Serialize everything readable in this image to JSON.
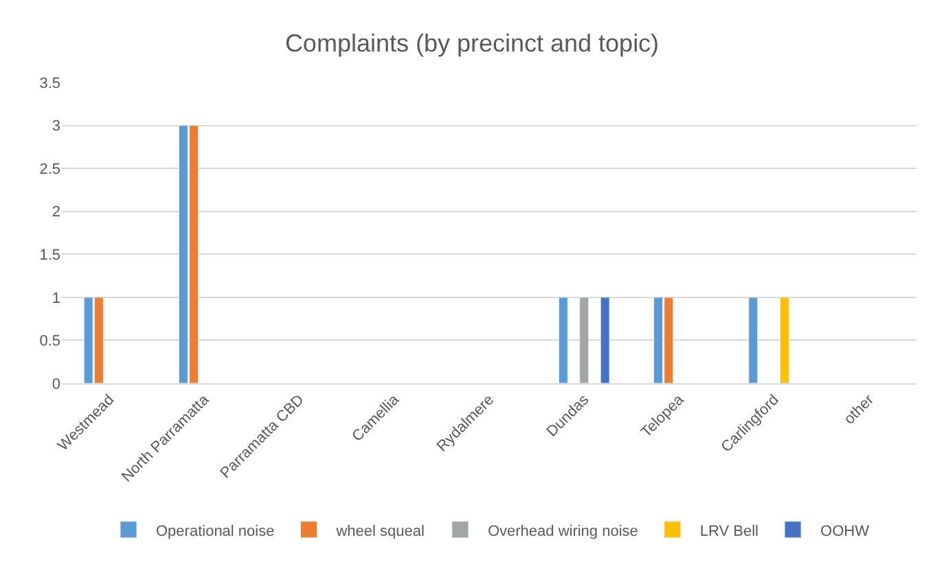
{
  "chart_data": {
    "type": "bar",
    "title": "Complaints (by precinct and topic)",
    "categories": [
      "Westmead",
      "North Parramatta",
      "Parramatta CBD",
      "Camellia",
      "Rydalmere",
      "Dundas",
      "Telopea",
      "Carlingford",
      "other"
    ],
    "series": [
      {
        "name": "Operational noise",
        "color": "#5b9bd5",
        "values": [
          1,
          3,
          null,
          null,
          null,
          1,
          1,
          1,
          null
        ]
      },
      {
        "name": "wheel squeal",
        "color": "#ed7d31",
        "values": [
          1,
          3,
          null,
          null,
          null,
          null,
          1,
          null,
          null
        ]
      },
      {
        "name": "Overhead wiring noise",
        "color": "#a5a5a5",
        "values": [
          null,
          null,
          null,
          null,
          null,
          1,
          null,
          null,
          null
        ]
      },
      {
        "name": "LRV Bell",
        "color": "#ffc000",
        "values": [
          null,
          null,
          null,
          null,
          null,
          null,
          null,
          1,
          null
        ]
      },
      {
        "name": "OOHW",
        "color": "#4472c4",
        "values": [
          null,
          null,
          null,
          null,
          null,
          1,
          null,
          null,
          null
        ]
      }
    ],
    "ylim": [
      0,
      3.5
    ],
    "yticks": [
      0,
      0.5,
      1,
      1.5,
      2,
      2.5,
      3,
      3.5
    ],
    "grid": "y",
    "legend": "bottom"
  }
}
